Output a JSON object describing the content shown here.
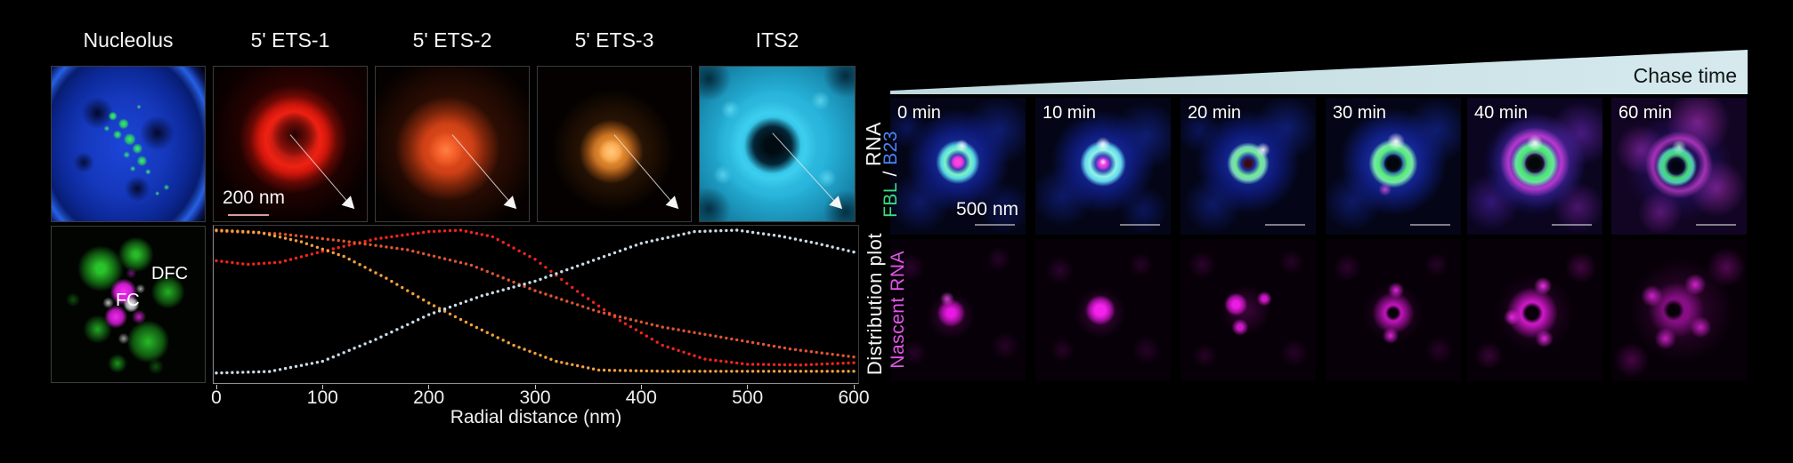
{
  "left_panel": {
    "column_titles": [
      "Nucleolus",
      "5' ETS-1",
      "5' ETS-2",
      "5' ETS-3",
      "ITS2"
    ],
    "row_label_top": "RNA",
    "row_label_bottom": "Distribution plot",
    "scale_bar_label": "200 nm",
    "dfc_label": "DFC",
    "fc_label": "FC"
  },
  "right_panel": {
    "header": "Chase time",
    "time_labels": [
      "0 min",
      "10 min",
      "20 min",
      "30 min",
      "40 min",
      "60 min"
    ],
    "scale_bar_label": "500 nm",
    "row_label_top": {
      "part1": "FBL",
      "separator": " / ",
      "part2": "B23"
    },
    "row_label_bottom": "Nascent RNA",
    "colors": {
      "fbl": "#3bdc82",
      "b23": "#4b82f4",
      "nascent_rna": "#e156e8",
      "wedge": "#cfe3e8"
    }
  },
  "chart_data": {
    "type": "line",
    "style": "dotted",
    "title": "Distribution plot",
    "xlabel": "Radial distance (nm)",
    "ylabel": "",
    "xlim": [
      0,
      600
    ],
    "ylim": [
      0,
      1
    ],
    "xticks": [
      0,
      100,
      200,
      300,
      400,
      500,
      600
    ],
    "grid": false,
    "legend": "none (series colors match RNA probe panels)",
    "dot_step_nm": 5,
    "series": [
      {
        "name": "5' ETS-1",
        "color": "#f3241b",
        "points": [
          [
            0,
            0.79
          ],
          [
            30,
            0.765
          ],
          [
            60,
            0.78
          ],
          [
            100,
            0.855
          ],
          [
            150,
            0.94
          ],
          [
            200,
            0.99
          ],
          [
            230,
            1.0
          ],
          [
            260,
            0.955
          ],
          [
            300,
            0.8
          ],
          [
            340,
            0.58
          ],
          [
            380,
            0.38
          ],
          [
            420,
            0.21
          ],
          [
            460,
            0.115
          ],
          [
            500,
            0.08
          ],
          [
            550,
            0.075
          ],
          [
            600,
            0.09
          ]
        ]
      },
      {
        "name": "5' ETS-2",
        "color": "#e0552c",
        "points": [
          [
            0,
            0.995
          ],
          [
            60,
            0.975
          ],
          [
            120,
            0.925
          ],
          [
            180,
            0.865
          ],
          [
            240,
            0.76
          ],
          [
            300,
            0.585
          ],
          [
            360,
            0.44
          ],
          [
            420,
            0.335
          ],
          [
            480,
            0.26
          ],
          [
            540,
            0.185
          ],
          [
            600,
            0.13
          ]
        ]
      },
      {
        "name": "5' ETS-3",
        "color": "#f5a03d",
        "points": [
          [
            0,
            1.0
          ],
          [
            40,
            0.985
          ],
          [
            80,
            0.92
          ],
          [
            120,
            0.82
          ],
          [
            160,
            0.67
          ],
          [
            200,
            0.5
          ],
          [
            240,
            0.35
          ],
          [
            280,
            0.21
          ],
          [
            320,
            0.1
          ],
          [
            360,
            0.04
          ],
          [
            420,
            0.032
          ],
          [
            500,
            0.032
          ],
          [
            600,
            0.032
          ]
        ]
      },
      {
        "name": "ITS2",
        "color": "#c9dbe9",
        "points": [
          [
            0,
            0.02
          ],
          [
            50,
            0.03
          ],
          [
            100,
            0.1
          ],
          [
            150,
            0.25
          ],
          [
            200,
            0.42
          ],
          [
            250,
            0.55
          ],
          [
            300,
            0.65
          ],
          [
            350,
            0.78
          ],
          [
            400,
            0.91
          ],
          [
            450,
            0.99
          ],
          [
            490,
            1.0
          ],
          [
            530,
            0.96
          ],
          [
            565,
            0.91
          ],
          [
            600,
            0.85
          ]
        ]
      }
    ]
  }
}
